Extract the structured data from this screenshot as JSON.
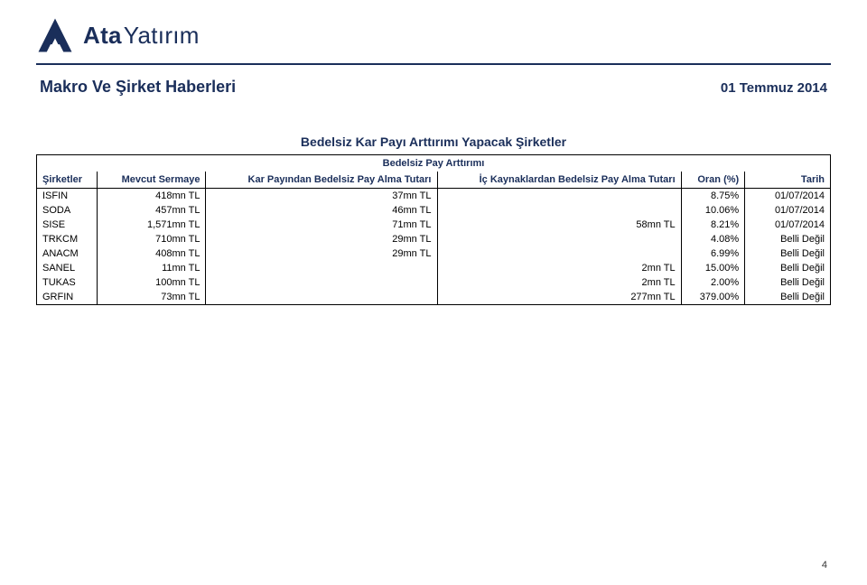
{
  "brand": {
    "name_bold": "Ata",
    "name_light": "Yatırım"
  },
  "header": {
    "title": "Makro Ve Şirket Haberleri",
    "date": "01 Temmuz 2014"
  },
  "table": {
    "title": "Bedelsiz Kar Payı Arttırımı Yapacak Şirketler",
    "super_header": "Bedelsiz Pay Arttırımı",
    "columns": {
      "sirketler": "Şirketler",
      "sermaye": "Mevcut Sermaye",
      "kar": "Kar Payından Bedelsiz Pay Alma Tutarı",
      "ic": "İç Kaynaklardan Bedelsiz Pay Alma Tutarı",
      "oran": "Oran (%)",
      "tarih": "Tarih"
    },
    "rows": [
      {
        "sirketler": "ISFIN",
        "sermaye": "418mn TL",
        "kar": "37mn TL",
        "ic": "",
        "oran": "8.75%",
        "tarih": "01/07/2014"
      },
      {
        "sirketler": "SODA",
        "sermaye": "457mn TL",
        "kar": "46mn TL",
        "ic": "",
        "oran": "10.06%",
        "tarih": "01/07/2014"
      },
      {
        "sirketler": "SISE",
        "sermaye": "1,571mn TL",
        "kar": "71mn TL",
        "ic": "58mn TL",
        "oran": "8.21%",
        "tarih": "01/07/2014"
      },
      {
        "sirketler": "TRKCM",
        "sermaye": "710mn TL",
        "kar": "29mn TL",
        "ic": "",
        "oran": "4.08%",
        "tarih": "Belli Değil"
      },
      {
        "sirketler": "ANACM",
        "sermaye": "408mn TL",
        "kar": "29mn TL",
        "ic": "",
        "oran": "6.99%",
        "tarih": "Belli Değil"
      },
      {
        "sirketler": "SANEL",
        "sermaye": "11mn TL",
        "kar": "",
        "ic": "2mn TL",
        "oran": "15.00%",
        "tarih": "Belli Değil"
      },
      {
        "sirketler": "TUKAS",
        "sermaye": "100mn TL",
        "kar": "",
        "ic": "2mn TL",
        "oran": "2.00%",
        "tarih": "Belli Değil"
      },
      {
        "sirketler": "GRFIN",
        "sermaye": "73mn TL",
        "kar": "",
        "ic": "277mn TL",
        "oran": "379.00%",
        "tarih": "Belli Değil"
      }
    ]
  },
  "page_number": "4",
  "colors": {
    "brand_navy": "#1a2e5a",
    "text_black": "#000000",
    "background": "#ffffff"
  },
  "typography": {
    "title_fontsize_pt": 14,
    "header_fontsize_pt": 18,
    "date_fontsize_pt": 15,
    "table_fontsize_pt": 11,
    "logo_fontsize_pt": 26
  }
}
